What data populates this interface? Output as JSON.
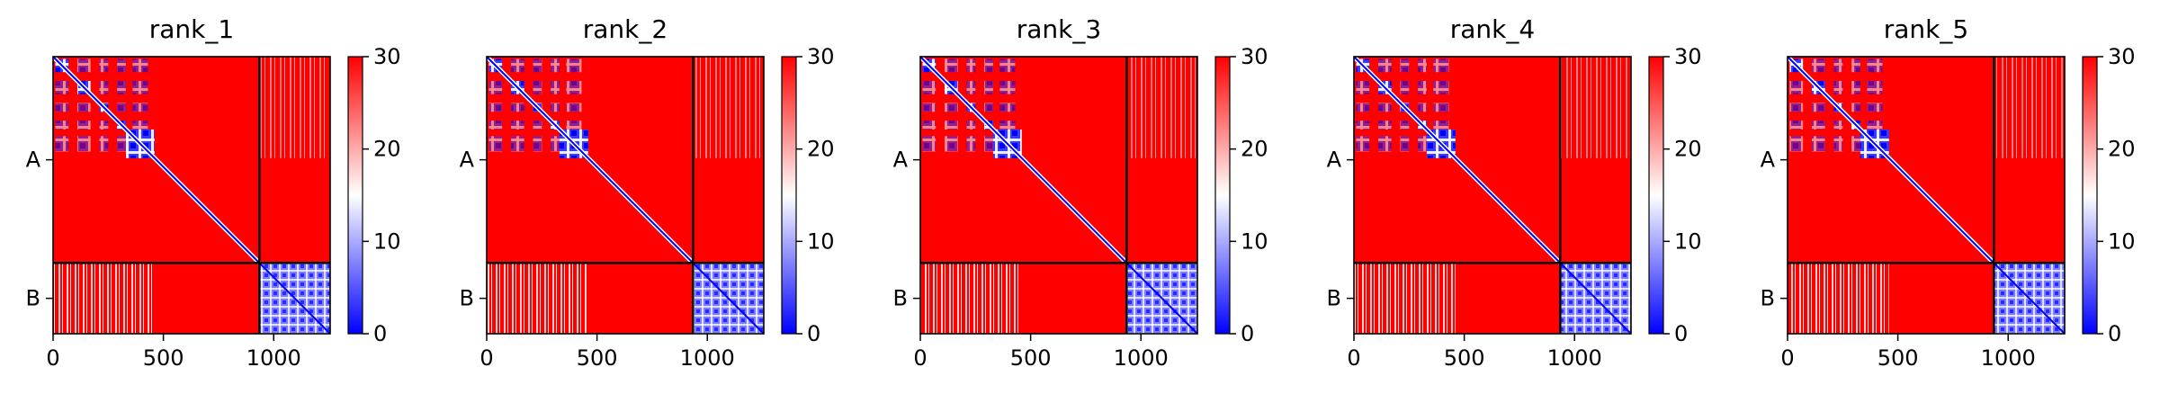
{
  "chart_data": [
    {
      "type": "heatmap",
      "title": "rank_1",
      "xlim": [
        0,
        1256
      ],
      "ylim": [
        1256,
        0
      ],
      "x_ticks": [
        0,
        500,
        1000
      ],
      "x_tick_labels": [
        "0",
        "500",
        "1000"
      ],
      "chain_boundary": 935,
      "y_ticks": [
        467.5,
        1095.5
      ],
      "y_tick_labels": [
        "A",
        "B"
      ],
      "colorbar": {
        "min": 0,
        "max": 30,
        "ticks": [
          0,
          10,
          20,
          30
        ],
        "tick_labels": [
          "0",
          "10",
          "20",
          "30"
        ],
        "colormap": "bwr"
      }
    },
    {
      "type": "heatmap",
      "title": "rank_2",
      "xlim": [
        0,
        1256
      ],
      "ylim": [
        1256,
        0
      ],
      "x_ticks": [
        0,
        500,
        1000
      ],
      "x_tick_labels": [
        "0",
        "500",
        "1000"
      ],
      "chain_boundary": 935,
      "y_ticks": [
        467.5,
        1095.5
      ],
      "y_tick_labels": [
        "A",
        "B"
      ],
      "colorbar": {
        "min": 0,
        "max": 30,
        "ticks": [
          0,
          10,
          20,
          30
        ],
        "tick_labels": [
          "0",
          "10",
          "20",
          "30"
        ],
        "colormap": "bwr"
      }
    },
    {
      "type": "heatmap",
      "title": "rank_3",
      "xlim": [
        0,
        1256
      ],
      "ylim": [
        1256,
        0
      ],
      "x_ticks": [
        0,
        500,
        1000
      ],
      "x_tick_labels": [
        "0",
        "500",
        "1000"
      ],
      "chain_boundary": 935,
      "y_ticks": [
        467.5,
        1095.5
      ],
      "y_tick_labels": [
        "A",
        "B"
      ],
      "colorbar": {
        "min": 0,
        "max": 30,
        "ticks": [
          0,
          10,
          20,
          30
        ],
        "tick_labels": [
          "0",
          "10",
          "20",
          "30"
        ],
        "colormap": "bwr"
      }
    },
    {
      "type": "heatmap",
      "title": "rank_4",
      "xlim": [
        0,
        1256
      ],
      "ylim": [
        1256,
        0
      ],
      "x_ticks": [
        0,
        500,
        1000
      ],
      "x_tick_labels": [
        "0",
        "500",
        "1000"
      ],
      "chain_boundary": 935,
      "y_ticks": [
        467.5,
        1095.5
      ],
      "y_tick_labels": [
        "A",
        "B"
      ],
      "colorbar": {
        "min": 0,
        "max": 30,
        "ticks": [
          0,
          10,
          20,
          30
        ],
        "tick_labels": [
          "0",
          "10",
          "20",
          "30"
        ],
        "colormap": "bwr"
      }
    },
    {
      "type": "heatmap",
      "title": "rank_5",
      "xlim": [
        0,
        1256
      ],
      "ylim": [
        1256,
        0
      ],
      "x_ticks": [
        0,
        500,
        1000
      ],
      "x_tick_labels": [
        "0",
        "500",
        "1000"
      ],
      "chain_boundary": 935,
      "y_ticks": [
        467.5,
        1095.5
      ],
      "y_tick_labels": [
        "A",
        "B"
      ],
      "colorbar": {
        "min": 0,
        "max": 30,
        "ticks": [
          0,
          10,
          20,
          30
        ],
        "tick_labels": [
          "0",
          "10",
          "20",
          "30"
        ],
        "colormap": "bwr"
      }
    }
  ],
  "colors": {
    "high": "#ff0000",
    "mid": "#ffffff",
    "low": "#0000ff",
    "boundary_line": "#000000"
  }
}
